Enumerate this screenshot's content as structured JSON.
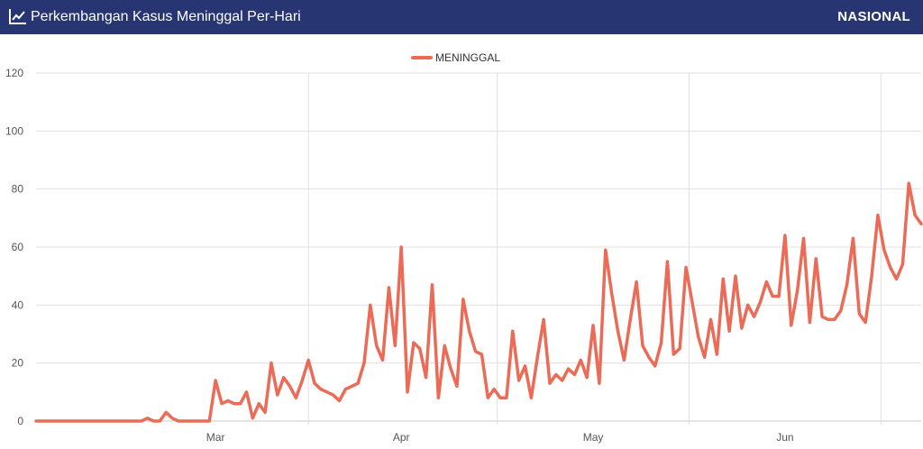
{
  "header": {
    "title": "Perkembangan Kasus Meninggal Per-Hari",
    "region": "NASIONAL",
    "icon": "line-chart-icon"
  },
  "chart_data": {
    "type": "line",
    "title": "Perkembangan Kasus Meninggal Per-Hari",
    "series": [
      {
        "name": "MENINGGAL",
        "color": "#ec6b56",
        "values": [
          0,
          0,
          0,
          0,
          0,
          0,
          0,
          0,
          0,
          0,
          0,
          0,
          0,
          0,
          0,
          0,
          0,
          0,
          1,
          0,
          0,
          3,
          1,
          0,
          0,
          0,
          0,
          0,
          0,
          14,
          6,
          7,
          6,
          6,
          10,
          1,
          6,
          3,
          20,
          9,
          15,
          12,
          8,
          14,
          21,
          13,
          11,
          10,
          9,
          7,
          11,
          12,
          13,
          20,
          40,
          26,
          21,
          46,
          26,
          60,
          10,
          27,
          25,
          15,
          47,
          8,
          26,
          18,
          12,
          42,
          31,
          24,
          23,
          8,
          11,
          8,
          8,
          31,
          14,
          19,
          8,
          22,
          35,
          13,
          16,
          14,
          18,
          16,
          21,
          15,
          33,
          13,
          59,
          44,
          31,
          21,
          35,
          48,
          26,
          22,
          19,
          27,
          55,
          23,
          25,
          53,
          41,
          29,
          22,
          35,
          23,
          49,
          31,
          50,
          32,
          40,
          36,
          41,
          48,
          43,
          43,
          64,
          33,
          45,
          63,
          34,
          56,
          36,
          35,
          35,
          38,
          47,
          63,
          37,
          34,
          50,
          71,
          59,
          53,
          49,
          54,
          82,
          71,
          68
        ]
      }
    ],
    "x_tick_labels": [
      {
        "label": "Mar",
        "index": 29
      },
      {
        "label": "Apr",
        "index": 59
      },
      {
        "label": "May",
        "index": 90
      },
      {
        "label": "Jun",
        "index": 121
      }
    ],
    "y_ticks": [
      0,
      20,
      40,
      60,
      80,
      100,
      120
    ],
    "ylim": [
      0,
      120
    ],
    "xlabel": "",
    "ylabel": "",
    "legend": "top-center",
    "grid": true
  }
}
